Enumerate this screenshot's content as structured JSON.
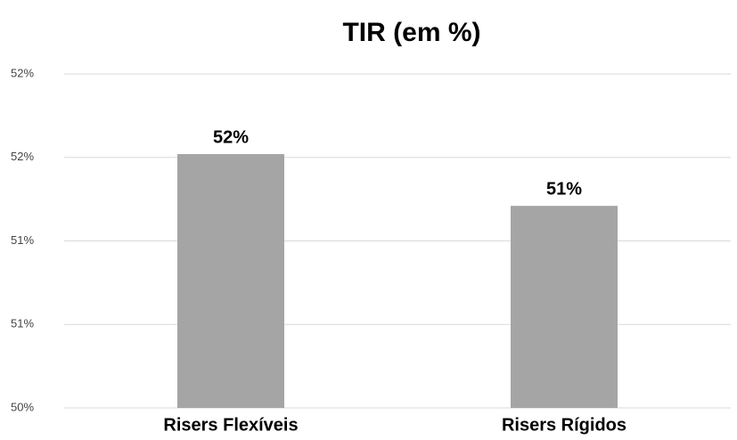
{
  "chart_data": {
    "type": "bar",
    "title": "TIR (em %)",
    "categories": [
      "Risers Flexíveis",
      "Risers Rígidos"
    ],
    "values": [
      51.52,
      51.21
    ],
    "value_labels": [
      "52%",
      "51%"
    ],
    "color": "#a5a5a5",
    "ylim": [
      50,
      52
    ],
    "yticks": [
      {
        "value": 50,
        "label": "50%"
      },
      {
        "value": 50.5,
        "label": "51%"
      },
      {
        "value": 51,
        "label": "51%"
      },
      {
        "value": 51.5,
        "label": "52%"
      },
      {
        "value": 52,
        "label": "52%"
      }
    ],
    "grid": true
  }
}
